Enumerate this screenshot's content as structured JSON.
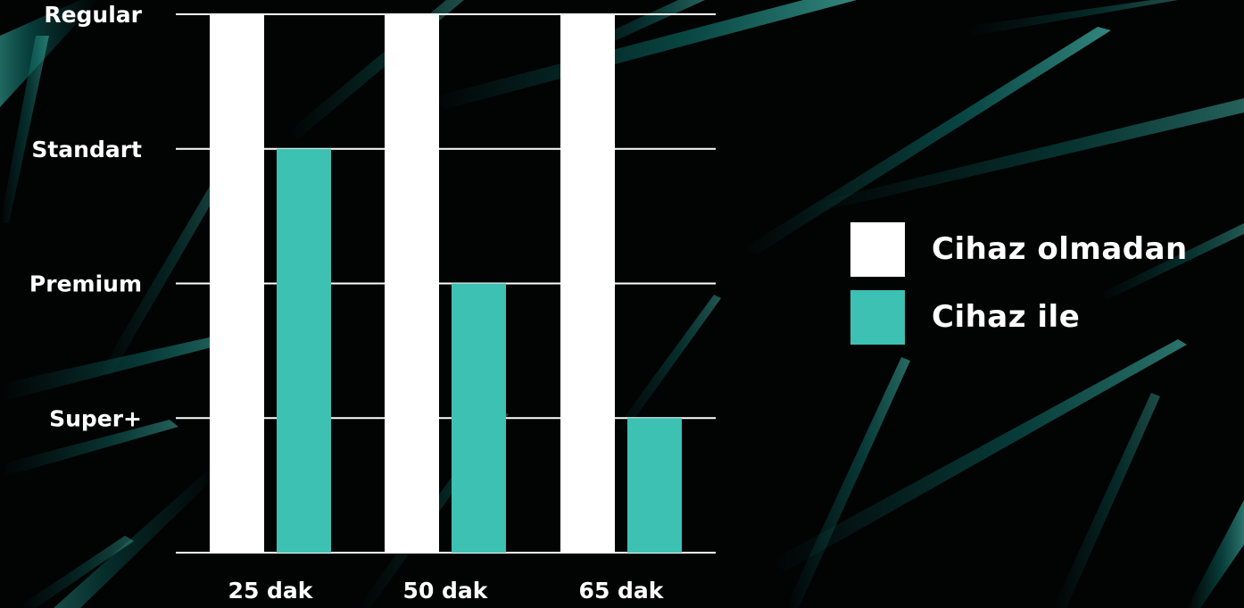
{
  "colors": {
    "background": "#020303",
    "accent_teal": "#3cc1b3",
    "gridline": "#ffffff",
    "text": "#ffffff"
  },
  "chart_data": {
    "type": "bar",
    "title": "",
    "xlabel": "",
    "ylabel": "",
    "categories": [
      "25 dak",
      "50 dak",
      "65 dak"
    ],
    "y_tick_labels": [
      "Super+",
      "Premium",
      "Standart",
      "Regular"
    ],
    "y_ticks": [
      1,
      2,
      3,
      4
    ],
    "ylim": [
      0,
      4
    ],
    "grid": true,
    "legend_position": "right",
    "series": [
      {
        "name": "Cihaz olmadan",
        "color": "#ffffff",
        "values": [
          4,
          4,
          4
        ]
      },
      {
        "name": "Cihaz ile",
        "color": "#3cc1b3",
        "values": [
          3,
          2,
          1
        ]
      }
    ]
  },
  "legend": {
    "items": [
      {
        "label": "Cihaz olmadan",
        "color": "#ffffff"
      },
      {
        "label": "Cihaz ile",
        "color": "#3cc1b3"
      }
    ]
  }
}
